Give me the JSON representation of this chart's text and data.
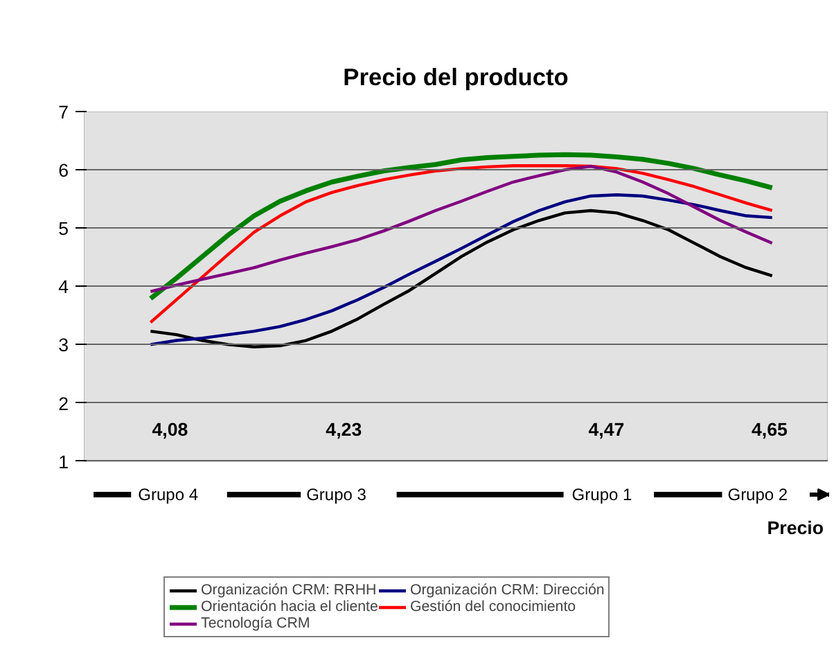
{
  "chart_data": {
    "type": "line",
    "title": "Precio del producto",
    "xlabel": "Precio",
    "categories": [
      null,
      null,
      null,
      null,
      null,
      null,
      null,
      null,
      null,
      null,
      null,
      null,
      null,
      null,
      null,
      null,
      null,
      null,
      null,
      null,
      null,
      null,
      null,
      null,
      null
    ],
    "ylim": [
      1,
      7
    ],
    "yticks": [
      1,
      2,
      3,
      4,
      5,
      6,
      7
    ],
    "grid": "y",
    "legend": "bottom",
    "line_style": "solid",
    "marker": "none",
    "annotations": [
      "4,08",
      "4,23",
      "4,47",
      "4,65",
      "Grupo 4",
      "Grupo 3",
      "Grupo 1",
      "Grupo 2"
    ],
    "series": [
      {
        "name": "Organización CRM: RRHH",
        "color": "#000000",
        "values": [
          3.23,
          3.17,
          3.07,
          3.0,
          2.96,
          2.98,
          3.07,
          3.23,
          3.44,
          3.69,
          3.93,
          4.22,
          4.51,
          4.76,
          4.97,
          5.13,
          5.26,
          5.3,
          5.26,
          5.13,
          4.97,
          4.74,
          4.51,
          4.32,
          4.18
        ]
      },
      {
        "name": "Organización CRM: Dirección",
        "color": "#000080",
        "values": [
          3.0,
          3.07,
          3.11,
          3.17,
          3.23,
          3.31,
          3.43,
          3.58,
          3.77,
          3.98,
          4.21,
          4.43,
          4.65,
          4.88,
          5.11,
          5.3,
          5.45,
          5.55,
          5.57,
          5.55,
          5.48,
          5.4,
          5.3,
          5.21,
          5.18
        ]
      },
      {
        "name": "Orientación hacia el cliente",
        "color": "#008000",
        "values": [
          3.79,
          4.14,
          4.51,
          4.88,
          5.21,
          5.46,
          5.64,
          5.79,
          5.89,
          5.98,
          6.04,
          6.09,
          6.17,
          6.21,
          6.23,
          6.25,
          6.26,
          6.25,
          6.22,
          6.18,
          6.11,
          6.02,
          5.91,
          5.81,
          5.69
        ]
      },
      {
        "name": "Gestión del conocimiento",
        "color": "#ff0000",
        "values": [
          3.38,
          3.77,
          4.16,
          4.55,
          4.93,
          5.21,
          5.45,
          5.61,
          5.73,
          5.83,
          5.91,
          5.98,
          6.02,
          6.05,
          6.07,
          6.07,
          6.07,
          6.06,
          6.02,
          5.94,
          5.83,
          5.71,
          5.57,
          5.43,
          5.3
        ]
      },
      {
        "name": "Tecnología CRM",
        "color": "#800080",
        "values": [
          3.91,
          4.02,
          4.12,
          4.22,
          4.32,
          4.45,
          4.57,
          4.68,
          4.8,
          4.95,
          5.12,
          5.3,
          5.46,
          5.63,
          5.79,
          5.9,
          6.0,
          6.06,
          5.96,
          5.79,
          5.59,
          5.36,
          5.13,
          4.93,
          4.74
        ]
      }
    ]
  }
}
